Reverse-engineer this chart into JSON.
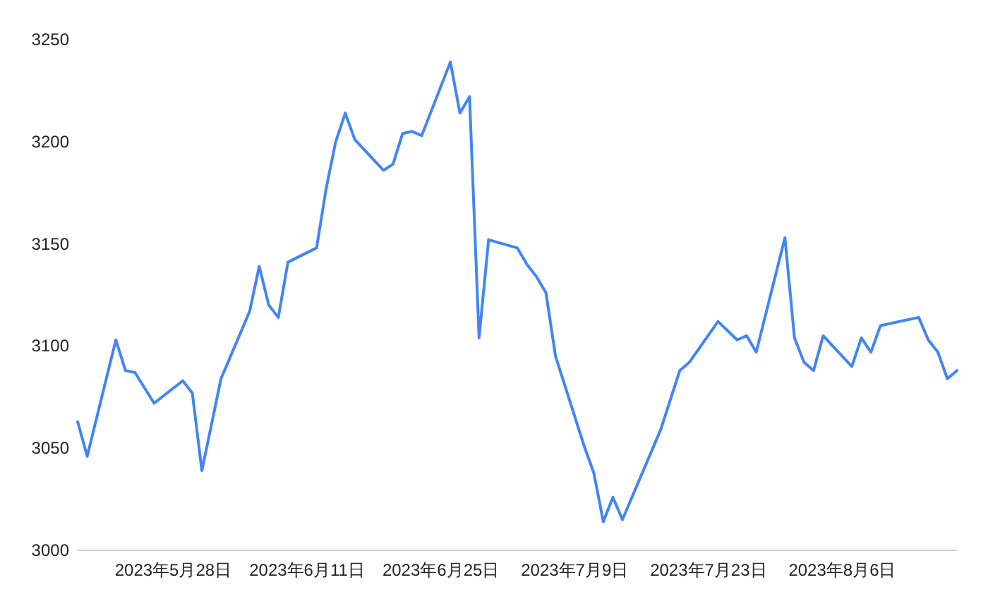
{
  "chart_data": {
    "type": "line",
    "x": [
      "2023-05-18",
      "2023-05-19",
      "2023-05-22",
      "2023-05-23",
      "2023-05-24",
      "2023-05-26",
      "2023-05-29",
      "2023-05-30",
      "2023-05-31",
      "2023-06-02",
      "2023-06-05",
      "2023-06-06",
      "2023-06-07",
      "2023-06-08",
      "2023-06-09",
      "2023-06-12",
      "2023-06-13",
      "2023-06-14",
      "2023-06-15",
      "2023-06-16",
      "2023-06-19",
      "2023-06-20",
      "2023-06-21",
      "2023-06-22",
      "2023-06-23",
      "2023-06-26",
      "2023-06-27",
      "2023-06-28",
      "2023-06-29",
      "2023-06-30",
      "2023-07-03",
      "2023-07-04",
      "2023-07-05",
      "2023-07-06",
      "2023-07-07",
      "2023-07-10",
      "2023-07-11",
      "2023-07-12",
      "2023-07-13",
      "2023-07-14",
      "2023-07-18",
      "2023-07-20",
      "2023-07-21",
      "2023-07-24",
      "2023-07-26",
      "2023-07-27",
      "2023-07-28",
      "2023-07-31",
      "2023-08-01",
      "2023-08-02",
      "2023-08-03",
      "2023-08-04",
      "2023-08-07",
      "2023-08-08",
      "2023-08-09",
      "2023-08-10",
      "2023-08-14",
      "2023-08-15",
      "2023-08-16",
      "2023-08-17",
      "2023-08-18"
    ],
    "values": [
      3063,
      3046,
      3103,
      3088,
      3087,
      3072,
      3083,
      3077,
      3039,
      3084,
      3117,
      3139,
      3120,
      3114,
      3141,
      3148,
      3177,
      3200,
      3214,
      3201,
      3186,
      3189,
      3204,
      3205,
      3203,
      3239,
      3214,
      3222,
      3104,
      3152,
      3148,
      3140,
      3134,
      3126,
      3095,
      3051,
      3038,
      3014,
      3026,
      3015,
      3059,
      3088,
      3092,
      3112,
      3103,
      3105,
      3097,
      3153,
      3104,
      3092,
      3088,
      3105,
      3090,
      3104,
      3097,
      3110,
      3114,
      3103,
      3097,
      3084,
      3088
    ],
    "color": "#4285f4",
    "xlim": [
      "2023-05-18",
      "2023-08-18"
    ],
    "xticks": [
      {
        "value": "2023-05-28",
        "label": "2023年5月28日"
      },
      {
        "value": "2023-06-11",
        "label": "2023年6月11日"
      },
      {
        "value": "2023-06-25",
        "label": "2023年6月25日"
      },
      {
        "value": "2023-07-09",
        "label": "2023年7月9日"
      },
      {
        "value": "2023-07-23",
        "label": "2023年7月23日"
      },
      {
        "value": "2023-08-06",
        "label": "2023年8月6日"
      }
    ],
    "ylim": [
      3000,
      3250
    ],
    "yticks": [
      3000,
      3050,
      3100,
      3150,
      3200,
      3250
    ]
  }
}
